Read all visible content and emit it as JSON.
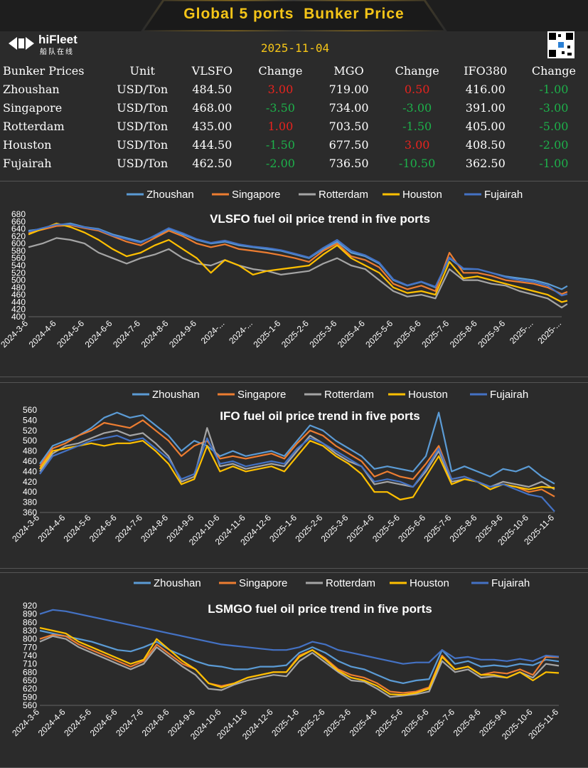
{
  "header": {
    "title": "Global 5 ports  Bunker Price",
    "date": "2025-11-04"
  },
  "logo": {
    "name": "hiFleet",
    "sub": "船队在线"
  },
  "table": {
    "headers": [
      "Bunker Prices",
      "Unit",
      "VLSFO",
      "Change",
      "MGO",
      "Change",
      "IFO380",
      "Change"
    ],
    "rows": [
      {
        "port": "Zhoushan",
        "unit": "USD/Ton",
        "vlsfo": "484.50",
        "vlsfo_change": "3.00",
        "mgo": "719.00",
        "mgo_change": "0.50",
        "ifo": "416.00",
        "ifo_change": "-1.00"
      },
      {
        "port": "Singapore",
        "unit": "USD/Ton",
        "vlsfo": "468.00",
        "vlsfo_change": "-3.50",
        "mgo": "734.00",
        "mgo_change": "-3.00",
        "ifo": "391.00",
        "ifo_change": "-3.00"
      },
      {
        "port": "Rotterdam",
        "unit": "USD/Ton",
        "vlsfo": "435.00",
        "vlsfo_change": "1.00",
        "mgo": "703.50",
        "mgo_change": "-1.50",
        "ifo": "405.00",
        "ifo_change": "-5.00"
      },
      {
        "port": "Houston",
        "unit": "USD/Ton",
        "vlsfo": "444.50",
        "vlsfo_change": "-1.50",
        "mgo": "677.50",
        "mgo_change": "3.00",
        "ifo": "408.50",
        "ifo_change": "-2.00"
      },
      {
        "port": "Fujairah",
        "unit": "USD/Ton",
        "vlsfo": "462.50",
        "vlsfo_change": "-2.00",
        "mgo": "736.50",
        "mgo_change": "-10.50",
        "ifo": "362.50",
        "ifo_change": "-1.00"
      }
    ]
  },
  "colors": {
    "Zhoushan": "#5b9bd5",
    "Singapore": "#ed7d31",
    "Rotterdam": "#a5a5a5",
    "Houston": "#ffc000",
    "Fujairah": "#4472c4",
    "up": "#e8231e",
    "down": "#1db04a",
    "title": "#f5c518"
  },
  "chart_data": [
    {
      "type": "line",
      "title": "VLSFO fuel oil price trend in five ports",
      "ylim": [
        400,
        680
      ],
      "yticks": [
        400,
        420,
        440,
        460,
        480,
        500,
        520,
        540,
        560,
        580,
        600,
        620,
        640,
        660,
        680
      ],
      "xticks": [
        "2024-3-6",
        "2024-4-6",
        "2024-5-6",
        "2024-6-6",
        "2024-7-6",
        "2024-8-6",
        "2024-9-6",
        "2024-...",
        "2024-...",
        "2025-1-6",
        "2025-2-6",
        "2025-3-6",
        "2025-4-6",
        "2025-5-6",
        "2025-6-6",
        "2025-7-6",
        "2025-8-6",
        "2025-9-6",
        "2025-...",
        "2025-..."
      ],
      "x": [
        0,
        0.5,
        1,
        1.5,
        2,
        2.5,
        3,
        3.5,
        4,
        4.5,
        5,
        5.5,
        6,
        6.5,
        7,
        7.5,
        8,
        8.5,
        9,
        9.5,
        10,
        10.5,
        11,
        11.5,
        12,
        12.5,
        13,
        13.5,
        14,
        14.5,
        15,
        15.5,
        16,
        16.5,
        17,
        17.5,
        18,
        18.5,
        19,
        19.2
      ],
      "series": [
        {
          "name": "Zhoushan",
          "values": [
            635,
            640,
            650,
            655,
            645,
            640,
            625,
            615,
            605,
            620,
            640,
            625,
            610,
            600,
            605,
            595,
            590,
            585,
            580,
            570,
            560,
            585,
            605,
            575,
            565,
            545,
            500,
            485,
            495,
            480,
            560,
            530,
            530,
            520,
            510,
            505,
            500,
            490,
            475,
            484
          ]
        },
        {
          "name": "Singapore",
          "values": [
            630,
            638,
            648,
            650,
            642,
            635,
            620,
            605,
            595,
            615,
            635,
            620,
            600,
            590,
            598,
            585,
            580,
            575,
            568,
            560,
            550,
            580,
            600,
            565,
            555,
            535,
            490,
            475,
            485,
            470,
            575,
            520,
            520,
            512,
            500,
            495,
            490,
            480,
            462,
            468
          ]
        },
        {
          "name": "Rotterdam",
          "values": [
            590,
            600,
            615,
            610,
            600,
            575,
            560,
            545,
            560,
            570,
            585,
            560,
            545,
            540,
            555,
            540,
            530,
            525,
            515,
            520,
            525,
            545,
            560,
            540,
            530,
            500,
            470,
            455,
            460,
            450,
            530,
            500,
            500,
            490,
            485,
            470,
            460,
            450,
            425,
            435
          ]
        },
        {
          "name": "Houston",
          "values": [
            625,
            640,
            655,
            645,
            630,
            610,
            585,
            565,
            575,
            595,
            610,
            585,
            560,
            520,
            555,
            540,
            515,
            525,
            530,
            535,
            540,
            570,
            595,
            560,
            540,
            520,
            480,
            465,
            470,
            460,
            550,
            505,
            510,
            500,
            490,
            480,
            470,
            460,
            440,
            444
          ]
        },
        {
          "name": "Fujairah",
          "values": [
            632,
            642,
            652,
            652,
            644,
            638,
            622,
            612,
            602,
            622,
            642,
            628,
            612,
            602,
            608,
            598,
            592,
            588,
            582,
            572,
            562,
            588,
            610,
            580,
            568,
            548,
            502,
            486,
            496,
            482,
            562,
            532,
            530,
            520,
            508,
            500,
            495,
            485,
            458,
            462
          ]
        }
      ]
    },
    {
      "type": "line",
      "title": "IFO fuel oil price trend in five ports",
      "ylim": [
        360,
        560
      ],
      "yticks": [
        360,
        380,
        400,
        420,
        440,
        460,
        480,
        500,
        520,
        540,
        560
      ],
      "xticks": [
        "2024-3-6",
        "2024-4-6",
        "2024-5-6",
        "2024-6-6",
        "2024-7-6",
        "2024-8-6",
        "2024-9-6",
        "2024-10-6",
        "2024-11-6",
        "2024-12-6",
        "2025-1-6",
        "2025-2-6",
        "2025-3-6",
        "2025-4-6",
        "2025-5-6",
        "2025-6-6",
        "2025-7-6",
        "2025-8-6",
        "2025-9-6",
        "2025-10-6",
        "2025-11-6"
      ],
      "x": [
        0,
        0.5,
        1,
        1.5,
        2,
        2.5,
        3,
        3.5,
        4,
        4.5,
        5,
        5.5,
        6,
        6.5,
        7,
        7.5,
        8,
        8.5,
        9,
        9.5,
        10,
        10.5,
        11,
        11.5,
        12,
        12.5,
        13,
        13.5,
        14,
        14.5,
        15,
        15.5,
        16,
        16.5,
        17,
        17.5,
        18,
        18.5,
        19,
        19.5,
        20
      ],
      "series": [
        {
          "name": "Zhoushan",
          "values": [
            455,
            490,
            500,
            510,
            525,
            545,
            555,
            545,
            550,
            530,
            510,
            480,
            500,
            490,
            470,
            480,
            470,
            475,
            480,
            470,
            500,
            530,
            520,
            500,
            485,
            470,
            445,
            450,
            445,
            440,
            470,
            555,
            440,
            450,
            440,
            430,
            445,
            440,
            450,
            430,
            416
          ]
        },
        {
          "name": "Singapore",
          "values": [
            450,
            485,
            495,
            510,
            520,
            535,
            530,
            525,
            540,
            520,
            500,
            470,
            490,
            500,
            465,
            470,
            465,
            470,
            475,
            465,
            495,
            520,
            510,
            490,
            475,
            460,
            430,
            440,
            430,
            425,
            455,
            490,
            425,
            430,
            420,
            410,
            415,
            410,
            400,
            405,
            391
          ]
        },
        {
          "name": "Rotterdam",
          "values": [
            440,
            475,
            490,
            495,
            505,
            515,
            520,
            510,
            515,
            495,
            470,
            420,
            430,
            525,
            450,
            455,
            445,
            450,
            455,
            450,
            480,
            510,
            495,
            475,
            460,
            450,
            415,
            420,
            415,
            410,
            440,
            480,
            420,
            425,
            420,
            410,
            420,
            415,
            410,
            420,
            405
          ]
        },
        {
          "name": "Houston",
          "values": [
            445,
            480,
            485,
            490,
            495,
            490,
            495,
            495,
            500,
            480,
            455,
            415,
            425,
            490,
            440,
            450,
            440,
            445,
            450,
            440,
            470,
            500,
            490,
            470,
            455,
            435,
            400,
            400,
            385,
            390,
            430,
            470,
            415,
            425,
            420,
            405,
            415,
            410,
            405,
            410,
            408
          ]
        },
        {
          "name": "Fujairah",
          "values": [
            435,
            470,
            480,
            490,
            500,
            505,
            510,
            500,
            505,
            485,
            465,
            425,
            435,
            505,
            455,
            460,
            450,
            455,
            460,
            455,
            485,
            505,
            495,
            480,
            465,
            450,
            420,
            425,
            420,
            410,
            445,
            485,
            425,
            430,
            420,
            410,
            415,
            405,
            395,
            390,
            362
          ]
        }
      ]
    },
    {
      "type": "line",
      "title": "LSMGO fuel oil price trend in five ports",
      "ylim": [
        560,
        920
      ],
      "yticks": [
        560,
        590,
        620,
        650,
        680,
        710,
        740,
        770,
        800,
        830,
        860,
        890,
        920
      ],
      "xticks": [
        "2024-3-6",
        "2024-4-6",
        "2024-5-6",
        "2024-6-6",
        "2024-7-6",
        "2024-8-6",
        "2024-9-6",
        "2024-10-6",
        "2024-11-6",
        "2024-12-6",
        "2025-1-6",
        "2025-2-6",
        "2025-3-6",
        "2025-4-6",
        "2025-5-6",
        "2025-6-6",
        "2025-7-6",
        "2025-8-6",
        "2025-9-6",
        "2025-10-6",
        "2025-11-6"
      ],
      "x": [
        0,
        0.5,
        1,
        1.5,
        2,
        2.5,
        3,
        3.5,
        4,
        4.5,
        5,
        5.5,
        6,
        6.5,
        7,
        7.5,
        8,
        8.5,
        9,
        9.5,
        10,
        10.5,
        11,
        11.5,
        12,
        12.5,
        13,
        13.5,
        14,
        14.5,
        15,
        15.5,
        16,
        16.5,
        17,
        17.5,
        18,
        18.5,
        19,
        19.5,
        20
      ],
      "series": [
        {
          "name": "Zhoushan",
          "values": [
            830,
            820,
            810,
            800,
            790,
            775,
            760,
            755,
            770,
            790,
            760,
            740,
            720,
            705,
            700,
            690,
            690,
            700,
            700,
            705,
            750,
            770,
            750,
            720,
            700,
            690,
            670,
            650,
            640,
            650,
            655,
            760,
            710,
            720,
            700,
            705,
            700,
            710,
            705,
            725,
            719
          ]
        },
        {
          "name": "Singapore",
          "values": [
            800,
            815,
            810,
            780,
            760,
            740,
            720,
            700,
            720,
            780,
            745,
            710,
            690,
            640,
            630,
            640,
            660,
            670,
            680,
            680,
            740,
            760,
            730,
            690,
            670,
            660,
            640,
            610,
            605,
            610,
            625,
            740,
            690,
            700,
            670,
            680,
            675,
            690,
            670,
            735,
            734
          ]
        },
        {
          "name": "Rotterdam",
          "values": [
            790,
            810,
            800,
            770,
            750,
            730,
            710,
            690,
            710,
            770,
            735,
            700,
            670,
            620,
            615,
            635,
            650,
            660,
            670,
            665,
            720,
            750,
            715,
            680,
            650,
            645,
            620,
            590,
            595,
            600,
            610,
            720,
            680,
            690,
            660,
            665,
            660,
            680,
            660,
            710,
            703
          ]
        },
        {
          "name": "Houston",
          "values": [
            840,
            830,
            820,
            790,
            770,
            750,
            730,
            710,
            725,
            800,
            760,
            720,
            690,
            640,
            625,
            640,
            660,
            670,
            680,
            680,
            735,
            760,
            725,
            685,
            660,
            650,
            630,
            600,
            598,
            605,
            620,
            735,
            690,
            700,
            670,
            670,
            660,
            680,
            650,
            680,
            677
          ]
        },
        {
          "name": "Fujairah",
          "values": [
            890,
            905,
            900,
            890,
            880,
            870,
            860,
            850,
            840,
            830,
            820,
            810,
            800,
            790,
            780,
            775,
            770,
            765,
            760,
            760,
            770,
            790,
            780,
            760,
            750,
            740,
            730,
            720,
            710,
            715,
            715,
            760,
            730,
            735,
            725,
            725,
            720,
            728,
            720,
            740,
            736
          ]
        }
      ]
    }
  ]
}
